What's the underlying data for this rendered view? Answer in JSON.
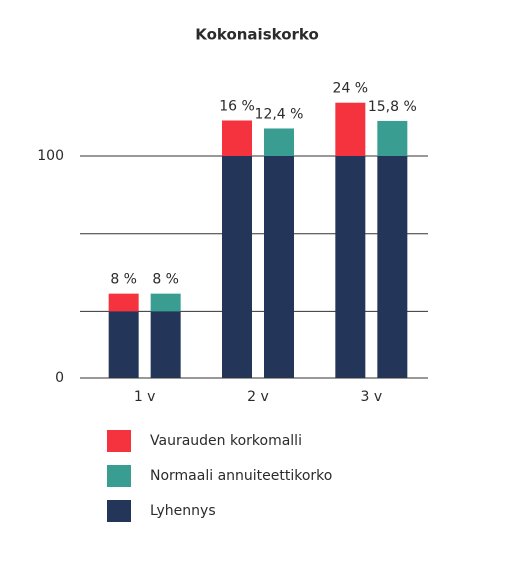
{
  "chart_data": {
    "type": "grouped-stacked-bar",
    "title": "Kokonaiskorko",
    "categories": [
      "1 v",
      "2 v",
      "3 v"
    ],
    "series": [
      {
        "name": "Vaurauden korkomalli",
        "color": "#f4333f",
        "group": 0,
        "values": [
          8,
          16,
          24
        ],
        "value_labels": [
          "8 %",
          "16 %",
          "24 %"
        ]
      },
      {
        "name": "Normaali annuiteettikorko",
        "color": "#3a9d92",
        "group": 1,
        "values": [
          8,
          12.4,
          15.8
        ],
        "value_labels": [
          "8 %",
          "12,4 %",
          "15,8 %"
        ]
      },
      {
        "name": "Lyhennys",
        "color": "#233558",
        "base": true,
        "values": [
          30,
          100,
          100
        ]
      }
    ],
    "ylim": [
      0,
      128
    ],
    "yticks": [
      0,
      100
    ],
    "unlabeled_gridlines": [
      30,
      65
    ],
    "grid": true,
    "legend": "bottom"
  }
}
